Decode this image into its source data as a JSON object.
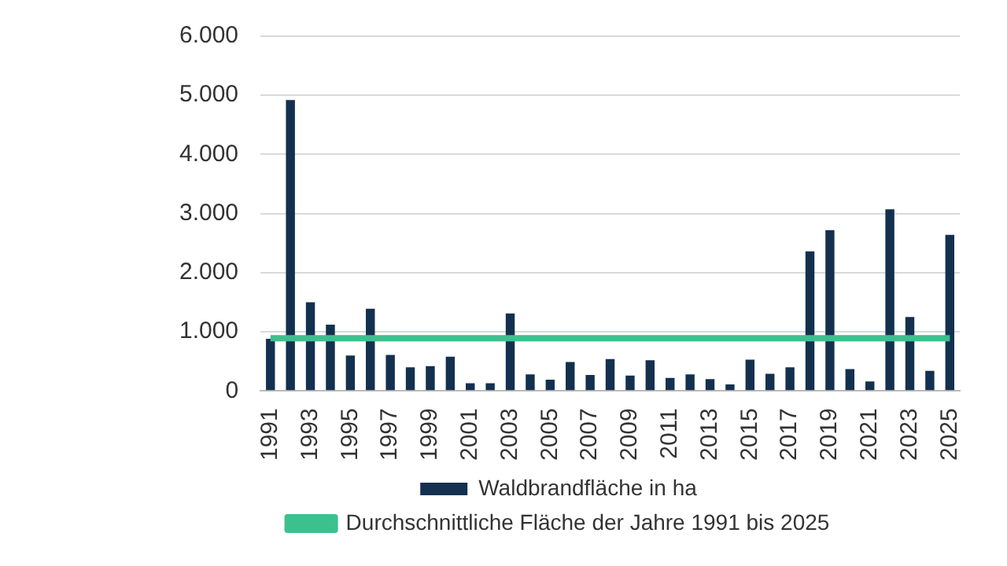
{
  "chart_data": {
    "type": "bar",
    "categories": [
      "1991",
      null,
      "1993",
      null,
      "1995",
      null,
      "1997",
      null,
      "1999",
      null,
      "2001",
      null,
      "2003",
      null,
      "2005",
      null,
      "2007",
      null,
      "2009",
      null,
      "2011",
      null,
      "2013",
      null,
      "2015",
      null,
      "2017",
      null,
      "2019",
      null,
      "2021",
      null,
      "2023",
      null,
      "2025"
    ],
    "series": [
      {
        "name": "Waldbrandfläche in ha",
        "color": "#13304f",
        "values": [
          880,
          4920,
          1500,
          1120,
          600,
          1390,
          610,
          400,
          420,
          580,
          130,
          130,
          1310,
          280,
          190,
          490,
          270,
          540,
          260,
          520,
          220,
          280,
          200,
          110,
          530,
          290,
          400,
          2360,
          2720,
          370,
          160,
          3070,
          1250,
          340,
          2640
        ]
      },
      {
        "name": "Durchschnittliche Fläche der Jahre 1991 bis 2025",
        "type": "line",
        "color": "#3cc08e",
        "values": [
          890,
          890,
          890,
          890,
          890,
          890,
          890,
          890,
          890,
          890,
          890,
          890,
          890,
          890,
          890,
          890,
          890,
          890,
          890,
          890,
          890,
          890,
          890,
          890,
          890,
          890,
          890,
          890,
          890,
          890,
          890,
          890,
          890,
          890,
          890
        ]
      }
    ],
    "ylim": [
      0,
      6000
    ],
    "yticks": [
      {
        "value": 0,
        "label": "0"
      },
      {
        "value": 1000,
        "label": "1.000"
      },
      {
        "value": 2000,
        "label": "2.000"
      },
      {
        "value": 3000,
        "label": "3.000"
      },
      {
        "value": 4000,
        "label": "4.000"
      },
      {
        "value": 5000,
        "label": "5.000"
      },
      {
        "value": 6000,
        "label": "6.000"
      }
    ],
    "grid": "y",
    "legend": "bottom",
    "marker": "none"
  }
}
